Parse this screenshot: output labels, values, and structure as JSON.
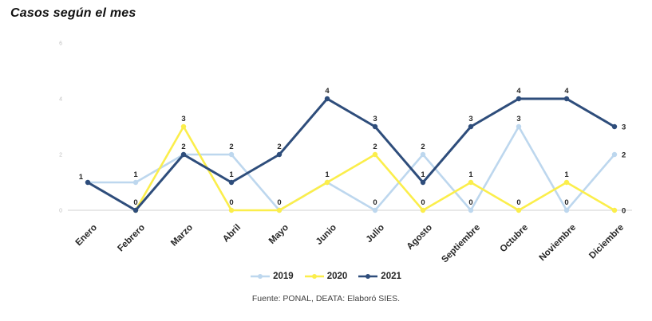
{
  "page": {
    "title": "Casos según el mes",
    "source": "Fuente: PONAL, DEATA: Elaboró SIES."
  },
  "chart_data": {
    "type": "line",
    "title": "Casos según el mes",
    "categories": [
      "Enero",
      "Febrero",
      "Marzo",
      "Abril",
      "Mayo",
      "Junio",
      "Julio",
      "Agosto",
      "Septiembre",
      "Octubre",
      "Noviembre",
      "Diciembre"
    ],
    "series": [
      {
        "name": "2019",
        "color": "#BDD7EE",
        "values": [
          1,
          1,
          2,
          2,
          0,
          1,
          0,
          2,
          0,
          3,
          0,
          2
        ]
      },
      {
        "name": "2020",
        "color": "#FBEE4B",
        "values": [
          null,
          0,
          3,
          0,
          0,
          1,
          2,
          0,
          1,
          0,
          1,
          0
        ]
      },
      {
        "name": "2021",
        "color": "#2E4D7B",
        "values": [
          1,
          0,
          2,
          1,
          2,
          4,
          3,
          1,
          3,
          4,
          4,
          3
        ]
      }
    ],
    "ylim": [
      0,
      6
    ],
    "yticks": [
      0,
      2,
      4,
      6
    ],
    "grid": "baseline-only",
    "legend_position": "bottom",
    "data_labels": true,
    "source": "Fuente: PONAL, DEATA: Elaboró SIES.",
    "colors": {
      "baseline": "#D9D9D9",
      "tick_text": "#BFBFBF",
      "label_text": "#262626",
      "month_text": "#262626"
    }
  }
}
